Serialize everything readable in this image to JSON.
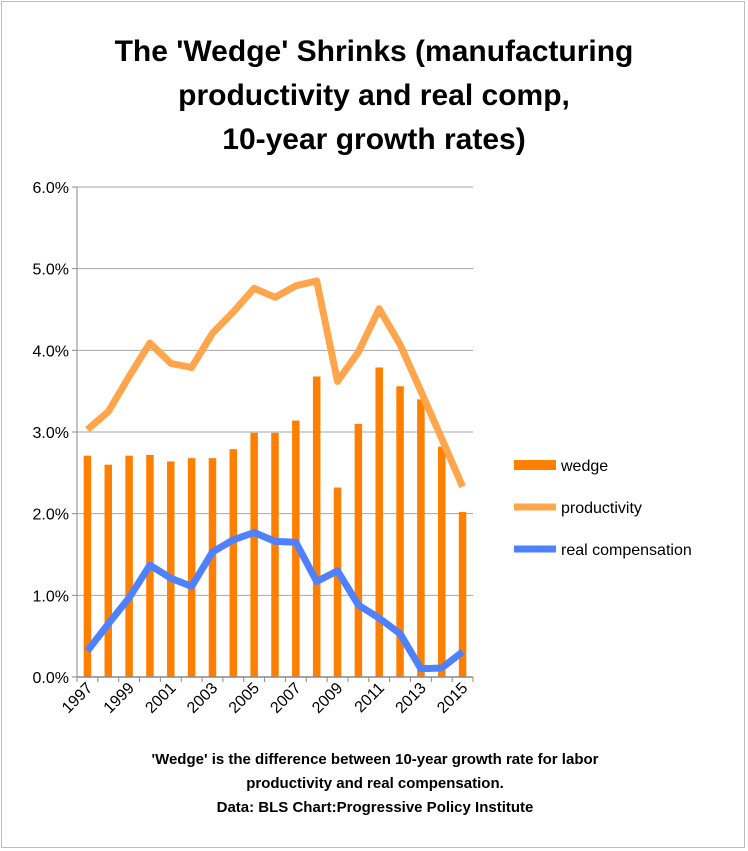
{
  "title_lines": [
    "The 'Wedge' Shrinks (manufacturing",
    "productivity and real comp,",
    "10-year growth rates)"
  ],
  "caption_lines": [
    "'Wedge' is the difference between 10-year growth rate for labor",
    "productivity and real compensation.",
    "Data: BLS  Chart:Progressive Policy Institute"
  ],
  "colors": {
    "wedge": "#FF7F00",
    "productivity": "#FFA64D",
    "real_compensation": "#4F81FF",
    "grid": "#A6A6A6"
  },
  "chart_data": {
    "type": "bar+line",
    "ylim": [
      0,
      0.06
    ],
    "yticks": [
      "0.0%",
      "1.0%",
      "2.0%",
      "3.0%",
      "4.0%",
      "5.0%",
      "6.0%"
    ],
    "x": [
      1997,
      1998,
      1999,
      2000,
      2001,
      2002,
      2003,
      2004,
      2005,
      2006,
      2007,
      2008,
      2009,
      2010,
      2011,
      2012,
      2013,
      2014,
      2015
    ],
    "xticks": [
      "1997",
      "1999",
      "2001",
      "2003",
      "2005",
      "2007",
      "2009",
      "2011",
      "2013",
      "2015"
    ],
    "legend_position": "right",
    "grid": true,
    "series": [
      {
        "name": "wedge",
        "kind": "bar",
        "values": [
          0.0271,
          0.026,
          0.0271,
          0.0272,
          0.0264,
          0.0268,
          0.0268,
          0.0279,
          0.0299,
          0.0299,
          0.0314,
          0.0368,
          0.0232,
          0.031,
          0.0379,
          0.0356,
          0.034,
          0.0282,
          0.0202
        ]
      },
      {
        "name": "productivity",
        "kind": "line",
        "values": [
          0.0303,
          0.0325,
          0.0368,
          0.0409,
          0.0384,
          0.0379,
          0.0421,
          0.0447,
          0.0476,
          0.0465,
          0.0479,
          0.0485,
          0.0362,
          0.0398,
          0.0451,
          0.0407,
          0.035,
          0.0292,
          0.0233
        ]
      },
      {
        "name": "real compensation",
        "kind": "line",
        "values": [
          0.0032,
          0.0065,
          0.0097,
          0.0137,
          0.0121,
          0.0111,
          0.0153,
          0.0168,
          0.0177,
          0.0166,
          0.0165,
          0.0117,
          0.013,
          0.0088,
          0.0072,
          0.0053,
          0.001,
          0.0011,
          0.0031
        ]
      }
    ]
  }
}
